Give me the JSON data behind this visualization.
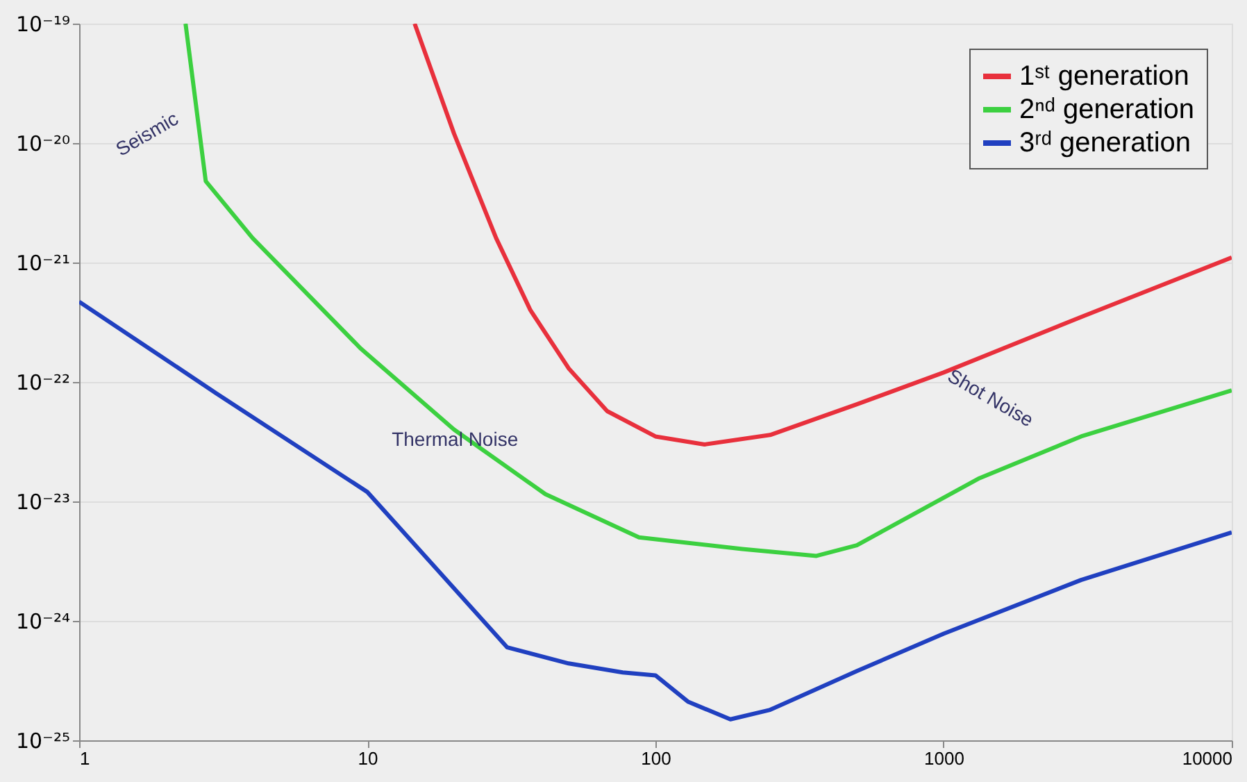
{
  "chart_data": {
    "type": "line",
    "log": "xy",
    "grid": "y",
    "legend": "top right",
    "xlim": [
      1,
      10000
    ],
    "xticks": [
      1,
      10,
      100,
      1000,
      10000
    ],
    "ylim": [
      1e-25,
      1e-19
    ],
    "yticks": [
      {
        "value": 1e-25,
        "label": "10⁻²⁵"
      },
      {
        "value": 1e-24,
        "label": "10⁻²⁴"
      },
      {
        "value": 1e-23,
        "label": "10⁻²³"
      },
      {
        "value": 1e-22,
        "label": "10⁻²²"
      },
      {
        "value": 1e-21,
        "label": "10⁻²¹"
      },
      {
        "value": 1e-20,
        "label": "10⁻²⁰"
      },
      {
        "value": 1e-19,
        "label": "10⁻¹⁹"
      }
    ],
    "series": [
      {
        "name": "1ˢᵗ generation",
        "color": "#e8303c",
        "x": [
          14.6,
          20,
          28,
          36.8,
          50,
          68,
          100,
          148,
          250,
          500,
          1000,
          3000,
          10000
        ],
        "values": [
          1e-19,
          1.2e-20,
          1.6e-21,
          4e-22,
          1.3e-22,
          5.7e-23,
          3.5e-23,
          3e-23,
          3.6e-23,
          6.5e-23,
          1.2e-22,
          3.5e-22,
          1.1e-21
        ]
      },
      {
        "name": "2ⁿᵈ generation",
        "color": "#3cd040",
        "x": [
          2.34,
          2.75,
          4,
          9.5,
          20,
          41.5,
          87.7,
          200,
          362,
          500,
          1320,
          3000,
          10000
        ],
        "values": [
          1e-19,
          4.8e-21,
          1.6e-21,
          1.9e-22,
          4e-23,
          1.15e-23,
          5e-24,
          4e-24,
          3.5e-24,
          4.3e-24,
          1.55e-23,
          3.5e-23,
          8.5e-23
        ]
      },
      {
        "name": "3ʳᵈ generation",
        "color": "#2040c0",
        "x": [
          1,
          3,
          10,
          30.6,
          50,
          77,
          100,
          130,
          182,
          250,
          500,
          1000,
          3000,
          10000
        ],
        "values": [
          4.7e-22,
          8e-23,
          1.2e-23,
          6e-25,
          4.4e-25,
          3.7e-25,
          3.5e-25,
          2.1e-25,
          1.5e-25,
          1.8e-25,
          3.8e-25,
          7.8e-25,
          2.2e-24,
          5.5e-24
        ]
      }
    ],
    "annotations": [
      "Seismic",
      "Thermal Noise",
      "Shot Noise"
    ]
  }
}
